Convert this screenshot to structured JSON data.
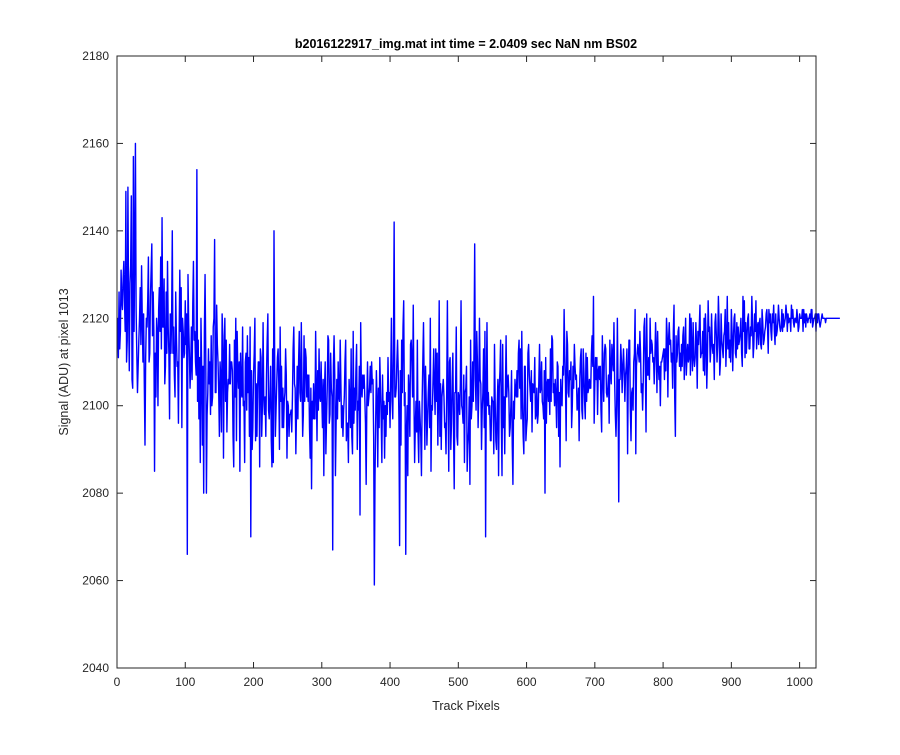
{
  "chart_data": {
    "type": "line",
    "title": "b2016122917_img.mat int time = 2.0409 sec  NaN nm BS02",
    "xlabel": "Track Pixels",
    "ylabel": "Signal (ADU) at pixel 1013",
    "xlim": [
      0,
      1024
    ],
    "ylim": [
      2040,
      2180
    ],
    "x_ticks": [
      0,
      100,
      200,
      300,
      400,
      500,
      600,
      700,
      800,
      900,
      1000
    ],
    "y_ticks": [
      2040,
      2060,
      2080,
      2100,
      2120,
      2140,
      2160,
      2180
    ],
    "grid": false,
    "line_color": "#0000ff",
    "series": [
      {
        "x_start": 1,
        "x_step": 1,
        "values": [
          2120,
          2111,
          2126,
          2113,
          2117,
          2131,
          2124,
          2122,
          2129,
          2133,
          2124,
          2117,
          2149,
          2110,
          2115,
          2150,
          2122,
          2108,
          2128,
          2132,
          2148,
          2106,
          2104,
          2157,
          2117,
          2135,
          2160,
          2122,
          2112,
          2103,
          2109,
          2115,
          2120,
          2127,
          2114,
          2132,
          2120,
          2110,
          2121,
          2105,
          2091,
          2111,
          2120,
          2118,
          2124,
          2134,
          2110,
          2112,
          2125,
          2131,
          2137,
          2116,
          2126,
          2117,
          2085,
          2112,
          2102,
          2120,
          2117,
          2100,
          2122,
          2127,
          2117,
          2134,
          2113,
          2143,
          2118,
          2118,
          2129,
          2105,
          2109,
          2126,
          2112,
          2133,
          2118,
          2112,
          2097,
          2121,
          2112,
          2120,
          2140,
          2112,
          2118,
          2107,
          2102,
          2126,
          2116,
          2109,
          2110,
          2096,
          2116,
          2131,
          2117,
          2127,
          2095,
          2120,
          2117,
          2111,
          2112,
          2124,
          2114,
          2121,
          2066,
          2130,
          2119,
          2112,
          2104,
          2109,
          2118,
          2106,
          2123,
          2133,
          2115,
          2117,
          2110,
          2107,
          2154,
          2101,
          2115,
          2097,
          2111,
          2087,
          2120,
          2109,
          2091,
          2109,
          2080,
          2117,
          2130,
          2112,
          2080,
          2098,
          2103,
          2113,
          2105,
          2110,
          2098,
          2116,
          2100,
          2102,
          2118,
          2120,
          2138,
          2103,
          2103,
          2123,
          2114,
          2110,
          2103,
          2093,
          2110,
          2106,
          2094,
          2121,
          2116,
          2088,
          2111,
          2120,
          2101,
          2115,
          2094,
          2103,
          2106,
          2105,
          2114,
          2105,
          2110,
          2110,
          2108,
          2093,
          2086,
          2115,
          2102,
          2120,
          2092,
          2117,
          2108,
          2104,
          2110,
          2085,
          2112,
          2103,
          2102,
          2118,
          2100,
          2101,
          2087,
          2110,
          2112,
          2099,
          2116,
          2103,
          2111,
          2093,
          2118,
          2070,
          2108,
          2090,
          2095,
          2107,
          2112,
          2120,
          2092,
          2105,
          2093,
          2104,
          2110,
          2110,
          2086,
          2113,
          2111,
          2093,
          2100,
          2119,
          2102,
          2098,
          2102,
          2093,
          2107,
          2115,
          2121,
          2099,
          2097,
          2102,
          2109,
          2092,
          2086,
          2113,
          2087,
          2140,
          2110,
          2093,
          2099,
          2105,
          2111,
          2113,
          2105,
          2090,
          2118,
          2101,
          2109,
          2095,
          2104,
          2095,
          2101,
          2103,
          2113,
          2107,
          2088,
          2101,
          2100,
          2093,
          2098,
          2098,
          2099,
          2094,
          2102,
          2113,
          2118,
          2105,
          2104,
          2089,
          2099,
          2109,
          2097,
          2110,
          2117,
          2103,
          2101,
          2119,
          2106,
          2093,
          2098,
          2116,
          2101,
          2113,
          2111,
          2102,
          2107,
          2101,
          2107,
          2095,
          2088,
          2104,
          2081,
          2101,
          2097,
          2105,
          2097,
          2097,
          2117,
          2104,
          2092,
          2108,
          2099,
          2113,
          2102,
          2101,
          2110,
          2102,
          2095,
          2106,
          2084,
          2104,
          2110,
          2089,
          2097,
          2104,
          2116,
          2115,
          2096,
          2098,
          2112,
          2104,
          2102,
          2067,
          2109,
          2116,
          2107,
          2084,
          2096,
          2106,
          2097,
          2110,
          2102,
          2101,
          2115,
          2105,
          2095,
          2100,
          2093,
          2099,
          2102,
          2110,
          2115,
          2092,
          2096,
          2096,
          2087,
          2106,
          2101,
          2095,
          2113,
          2093,
          2089,
          2117,
          2096,
          2104,
          2099,
          2108,
          2114,
          2090,
          2101,
          2099,
          2109,
          2075,
          2119,
          2104,
          2102,
          2107,
          2104,
          2107,
          2102,
          2096,
          2082,
          2101,
          2110,
          2100,
          2102,
          2104,
          2109,
          2103,
          2110,
          2105,
          2106,
          2093,
          2059,
          2084,
          2097,
          2108,
          2101,
          2086,
          2104,
          2095,
          2111,
          2104,
          2097,
          2087,
          2107,
          2097,
          2101,
          2088,
          2100,
          2093,
          2103,
          2098,
          2111,
          2101,
          2103,
          2095,
          2107,
          2120,
          2101,
          2097,
          2113,
          2142,
          2102,
          2102,
          2104,
          2110,
          2115,
          2108,
          2097,
          2068,
          2108,
          2091,
          2115,
          2103,
          2118,
          2124,
          2100,
          2103,
          2066,
          2094,
          2100,
          2084,
          2107,
          2103,
          2093,
          2114,
          2115,
          2110,
          2102,
          2123,
          2102,
          2087,
          2095,
          2101,
          2094,
          2115,
          2094,
          2087,
          2101,
          2097,
          2093,
          2084,
          2101,
          2110,
          2119,
          2105,
          2090,
          2109,
          2101,
          2091,
          2097,
          2103,
          2107,
          2095,
          2120,
          2085,
          2100,
          2099,
          2106,
          2113,
          2104,
          2098,
          2113,
          2101,
          2112,
          2091,
          2102,
          2124,
          2093,
          2105,
          2090,
          2102,
          2104,
          2106,
          2102,
          2095,
          2096,
          2089,
          2103,
          2124,
          2101,
          2085,
          2110,
          2111,
          2090,
          2096,
          2106,
          2112,
          2094,
          2081,
          2103,
          2103,
          2118,
          2093,
          2091,
          2103,
          2102,
          2098,
          2105,
          2124,
          2100,
          2099,
          2096,
          2107,
          2087,
          2103,
          2104,
          2109,
          2085,
          2091,
          2094,
          2102,
          2082,
          2115,
          2097,
          2100,
          2110,
          2101,
          2113,
          2137,
          2106,
          2099,
          2117,
          2110,
          2095,
          2103,
          2120,
          2106,
          2105,
          2090,
          2099,
          2103,
          2113,
          2095,
          2117,
          2070,
          2104,
          2119,
          2100,
          2103,
          2098,
          2100,
          2092,
          2092,
          2102,
          2101,
          2101,
          2089,
          2114,
          2101,
          2092,
          2090,
          2100,
          2106,
          2084,
          2104,
          2108,
          2115,
          2097,
          2084,
          2114,
          2095,
          2102,
          2089,
          2103,
          2116,
          2102,
          2106,
          2107,
          2103,
          2093,
          2095,
          2100,
          2108,
          2091,
          2082,
          2101,
          2097,
          2106,
          2103,
          2102,
          2108,
          2102,
          2112,
          2115,
          2104,
          2113,
          2097,
          2117,
          2101,
          2093,
          2089,
          2109,
          2109,
          2092,
          2095,
          2097,
          2112,
          2114,
          2107,
          2104,
          2101,
          2108,
          2094,
          2105,
          2104,
          2103,
          2111,
          2097,
          2098,
          2104,
          2096,
          2098,
          2106,
          2114,
          2103,
          2104,
          2110,
          2101,
          2100,
          2097,
          2108,
          2080,
          2111,
          2096,
          2105,
          2106,
          2101,
          2106,
          2098,
          2113,
          2101,
          2116,
          2115,
          2103,
          2105,
          2100,
          2106,
          2102,
          2095,
          2110,
          2109,
          2093,
          2103,
          2086,
          2106,
          2101,
          2100,
          2109,
          2107,
          2122,
          2112,
          2105,
          2092,
          2117,
          2114,
          2103,
          2102,
          2108,
          2106,
          2110,
          2095,
          2100,
          2109,
          2104,
          2114,
          2109,
          2106,
          2107,
          2099,
          2100,
          2104,
          2092,
          2106,
          2111,
          2113,
          2099,
          2097,
          2113,
          2108,
          2101,
          2097,
          2112,
          2101,
          2111,
          2103,
          2104,
          2106,
          2104,
          2104,
          2112,
          2116,
          2109,
          2125,
          2096,
          2105,
          2111,
          2106,
          2111,
          2098,
          2108,
          2109,
          2106,
          2109,
          2099,
          2094,
          2116,
          2107,
          2101,
          2112,
          2114,
          2113,
          2103,
          2102,
          2104,
          2107,
          2096,
          2115,
          2108,
          2105,
          2114,
          2111,
          2108,
          2119,
          2106,
          2098,
          2093,
          2100,
          2120,
          2105,
          2078,
          2106,
          2106,
          2114,
          2110,
          2103,
          2109,
          2113,
          2108,
          2101,
          2107,
          2109,
          2113,
          2089,
          2107,
          2115,
          2115,
          2099,
          2092,
          2103,
          2104,
          2099,
          2110,
          2112,
          2122,
          2089,
          2109,
          2112,
          2114,
          2112,
          2110,
          2117,
          2112,
          2103,
          2105,
          2099,
          2106,
          2118,
          2120,
          2109,
          2094,
          2121,
          2107,
          2107,
          2111,
          2106,
          2120,
          2112,
          2115,
          2114,
          2110,
          2111,
          2105,
          2111,
          2119,
          2113,
          2103,
          2117,
          2109,
          2106,
          2109,
          2100,
          2110,
          2110,
          2111,
          2112,
          2113,
          2106,
          2113,
          2108,
          2120,
          2116,
          2102,
          2115,
          2119,
          2114,
          2115,
          2110,
          2112,
          2104,
          2117,
          2123,
          2102,
          2093,
          2116,
          2110,
          2112,
          2117,
          2118,
          2109,
          2112,
          2108,
          2114,
          2109,
          2116,
          2118,
          2106,
          2112,
          2120,
          2107,
          2111,
          2114,
          2110,
          2111,
          2121,
          2107,
          2120,
          2113,
          2108,
          2119,
          2111,
          2109,
          2111,
          2119,
          2114,
          2104,
          2117,
          2114,
          2118,
          2123,
          2111,
          2112,
          2112,
          2117,
          2108,
          2120,
          2107,
          2121,
          2116,
          2104,
          2111,
          2124,
          2117,
          2118,
          2110,
          2113,
          2121,
          2114,
          2112,
          2114,
          2106,
          2119,
          2121,
          2116,
          2110,
          2114,
          2125,
          2119,
          2107,
          2110,
          2121,
          2115,
          2113,
          2111,
          2116,
          2117,
          2122,
          2109,
          2115,
          2125,
          2113,
          2119,
          2111,
          2115,
          2110,
          2122,
          2117,
          2108,
          2115,
          2120,
          2121,
          2112,
          2111,
          2119,
          2113,
          2118,
          2114,
          2115,
          2117,
          2120,
          2112,
          2109,
          2125,
          2117,
          2124,
          2111,
          2119,
          2112,
          2116,
          2120,
          2121,
          2113,
          2113,
          2118,
          2116,
          2125,
          2119,
          2111,
          2114,
          2121,
          2117,
          2124,
          2113,
          2118,
          2119,
          2114,
          2119,
          2120,
          2114,
          2113,
          2122,
          2119,
          2114,
          2115,
          2117,
          2118,
          2121,
          2122,
          2118,
          2112,
          2122,
          2119,
          2121,
          2117,
          2115,
          2121,
          2119,
          2123,
          2117,
          2114,
          2121,
          2116,
          2117,
          2119,
          2123,
          2120,
          2118,
          2117,
          2118,
          2122,
          2117,
          2121,
          2118,
          2119,
          2120,
          2123,
          2121,
          2117,
          2121,
          2119,
          2120,
          2120,
          2117,
          2123,
          2120,
          2122,
          2119,
          2118,
          2120,
          2120,
          2119,
          2122,
          2120,
          2117,
          2118,
          2121,
          2120,
          2120,
          2120,
          2122,
          2117,
          2122,
          2119,
          2121,
          2118,
          2121,
          2120,
          2119,
          2120,
          2120,
          2121,
          2119,
          2122,
          2122,
          2118,
          2119,
          2120,
          2120,
          2121,
          2117,
          2121,
          2119,
          2121,
          2121,
          2119,
          2118,
          2119,
          2120,
          2121,
          2120,
          2120,
          2120,
          2120,
          2119,
          2120,
          2120,
          2120,
          2120,
          2120,
          2120,
          2120,
          2120,
          2120,
          2120,
          2120,
          2120,
          2120,
          2120,
          2120,
          2120,
          2120,
          2120,
          2120,
          2120,
          2120
        ]
      }
    ]
  }
}
